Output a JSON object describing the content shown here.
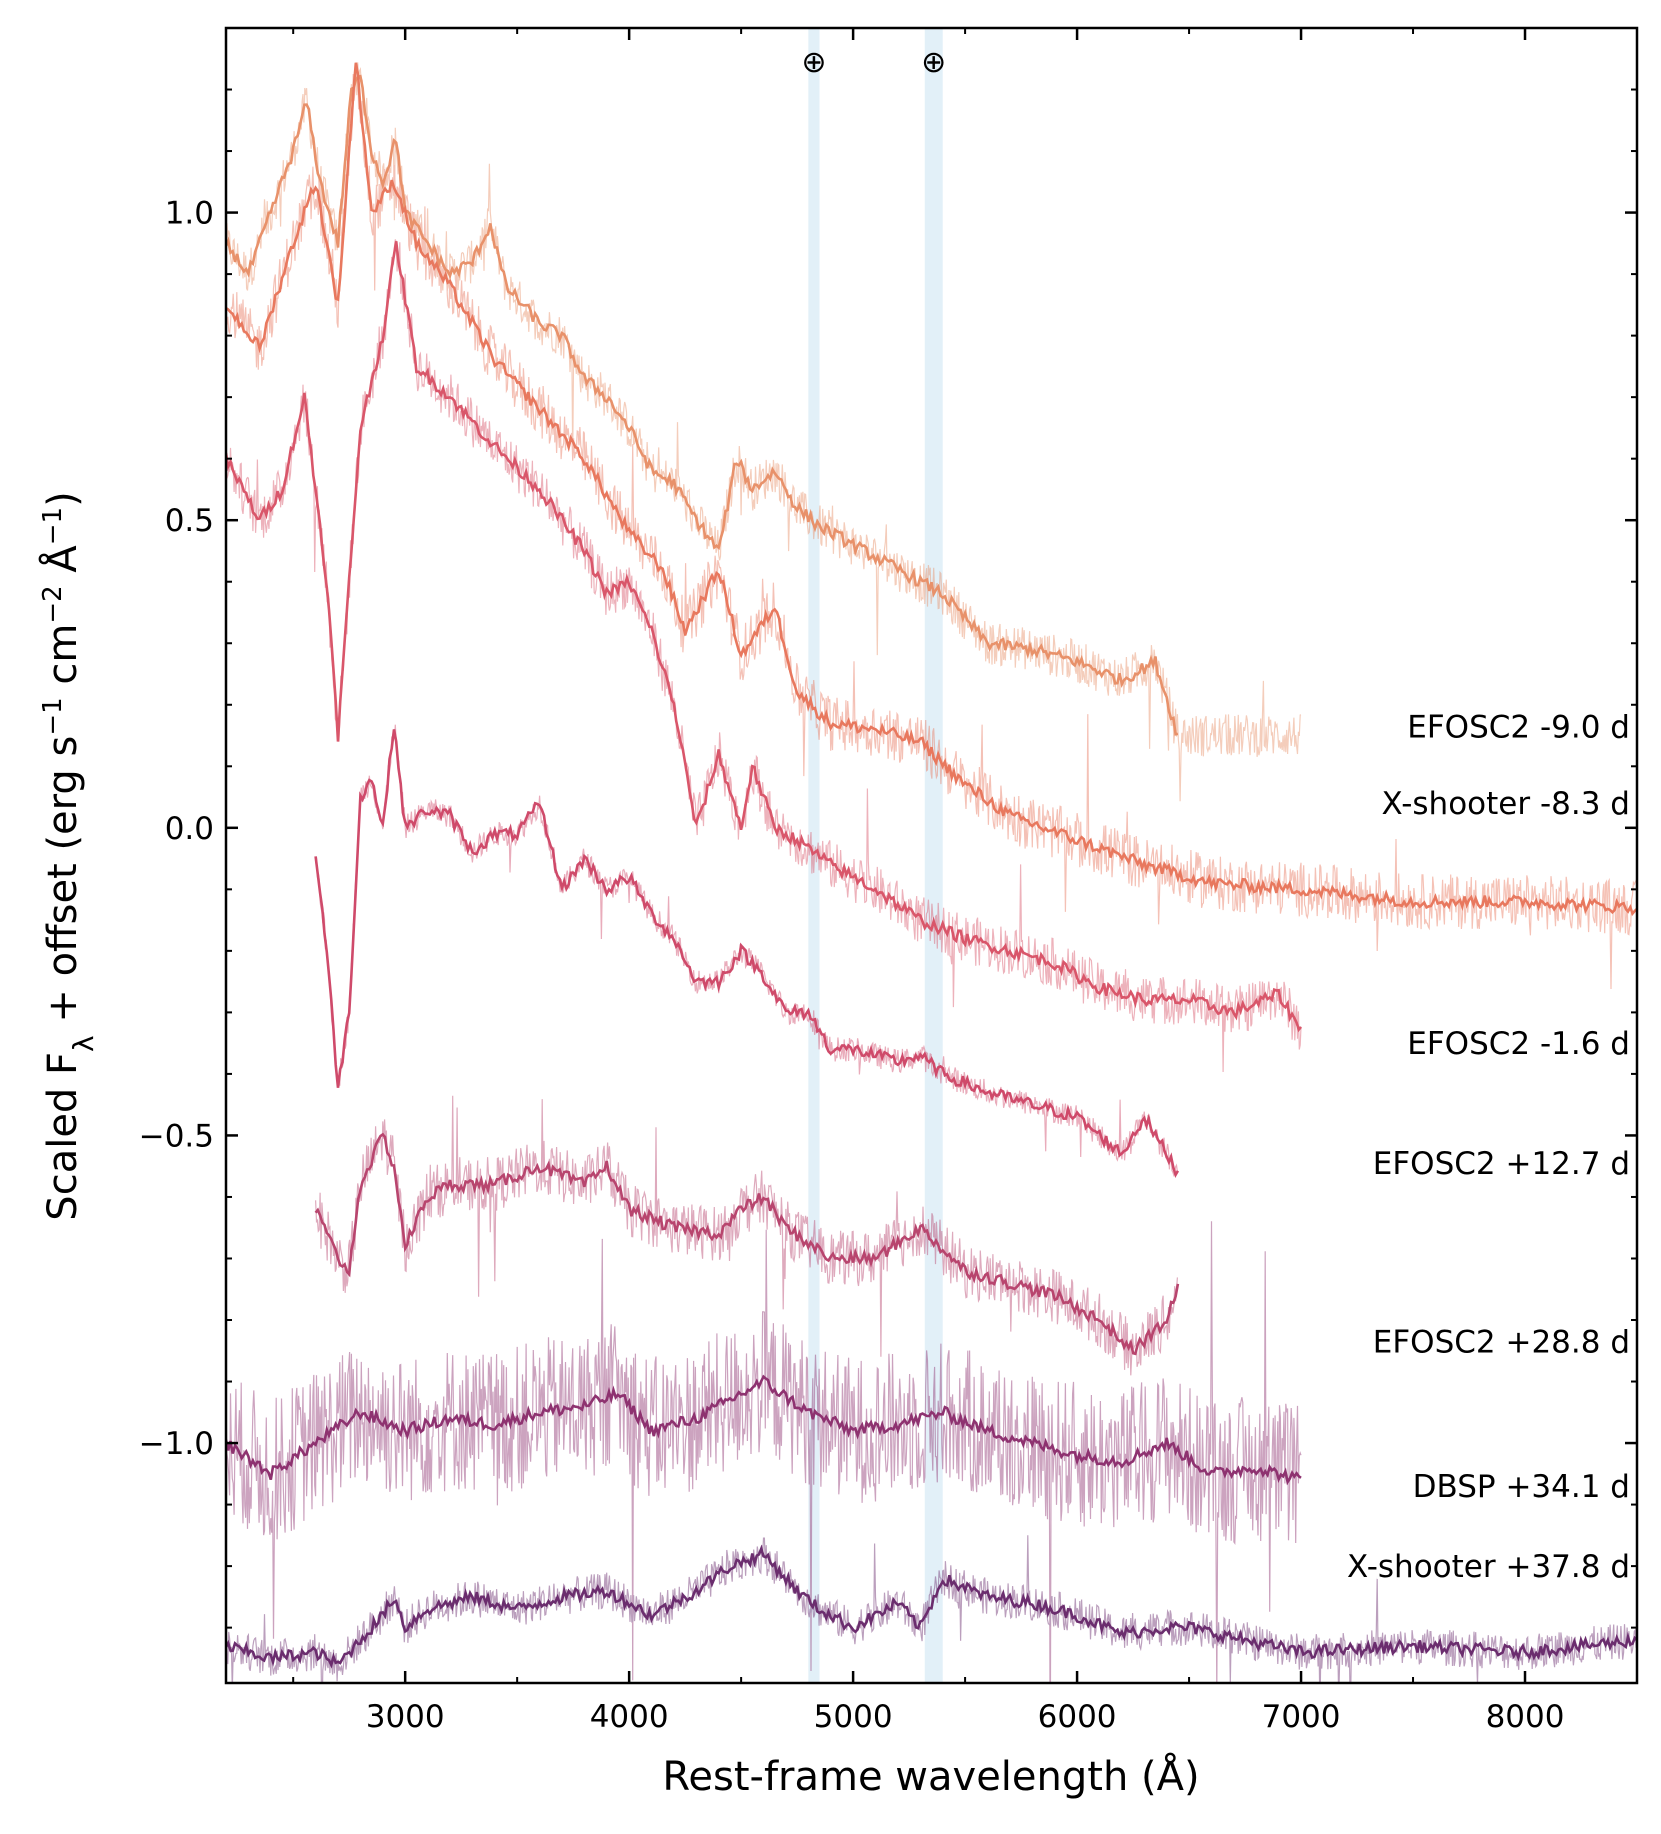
{
  "chart_data": {
    "type": "line",
    "title": "",
    "xlabel": "Rest-frame wavelength (Å)",
    "ylabel_parts": {
      "main": "Scaled F",
      "sub": "λ",
      "rest1": " + offset (erg s",
      "sup1": "−1",
      "rest2": " cm",
      "sup2": "−2",
      "rest3": " Å",
      "sup3": "−1",
      "rest4": ")"
    },
    "xlim": [
      2200,
      8500
    ],
    "ylim": [
      -1.39,
      1.3
    ],
    "xticks": [
      3000,
      4000,
      5000,
      6000,
      7000,
      8000
    ],
    "xtick_labels": [
      "3000",
      "4000",
      "5000",
      "6000",
      "7000",
      "8000"
    ],
    "yticks": [
      1.0,
      0.5,
      0.0,
      -0.5,
      -1.0
    ],
    "ytick_labels": [
      "1.0",
      "0.5",
      "0.0",
      "−0.5",
      "−1.0"
    ],
    "telluric_bands": [
      {
        "x0": 4800,
        "x1": 4850,
        "marker": "⊕"
      },
      {
        "x0": 5320,
        "x1": 5400,
        "marker": "⊕"
      }
    ],
    "series": [
      {
        "name": "EFOSC2 -9.0 d",
        "label": "EFOSC2 -9.0 d",
        "label_y": 0.165,
        "color": "#e8916a",
        "noise": 0.035,
        "raw_x_range": [
          2200,
          7000
        ],
        "smooth_x_range": [
          2200,
          6450
        ],
        "x": [
          2200,
          2300,
          2400,
          2500,
          2560,
          2620,
          2700,
          2760,
          2800,
          2850,
          2900,
          2960,
          3000,
          3100,
          3200,
          3300,
          3380,
          3450,
          3600,
          3700,
          3800,
          3900,
          4000,
          4100,
          4200,
          4300,
          4400,
          4480,
          4550,
          4650,
          4750,
          4850,
          5000,
          5200,
          5400,
          5600,
          5800,
          6000,
          6200,
          6350,
          6450
        ],
        "y": [
          0.95,
          0.9,
          1.0,
          1.1,
          1.18,
          1.05,
          0.95,
          1.2,
          1.22,
          1.1,
          1.05,
          1.12,
          1.0,
          0.95,
          0.9,
          0.92,
          0.98,
          0.88,
          0.82,
          0.8,
          0.73,
          0.7,
          0.65,
          0.58,
          0.56,
          0.5,
          0.45,
          0.6,
          0.55,
          0.58,
          0.52,
          0.49,
          0.46,
          0.42,
          0.38,
          0.3,
          0.29,
          0.27,
          0.24,
          0.27,
          0.15
        ]
      },
      {
        "name": "X-shooter -8.3 d",
        "label": "X-shooter -8.3 d",
        "label_y": 0.04,
        "color": "#e8785e",
        "noise": 0.045,
        "raw_x_range": [
          2200,
          8500
        ],
        "smooth_x_range": [
          2200,
          8500
        ],
        "x": [
          2200,
          2350,
          2500,
          2600,
          2700,
          2780,
          2850,
          2950,
          3050,
          3200,
          3400,
          3600,
          3800,
          4000,
          4150,
          4250,
          4400,
          4500,
          4650,
          4750,
          4900,
          5100,
          5300,
          5500,
          5700,
          6000,
          6300,
          6600,
          7000,
          7500,
          8000,
          8500
        ],
        "y": [
          0.85,
          0.78,
          0.95,
          1.05,
          0.85,
          1.25,
          1.0,
          1.05,
          0.95,
          0.88,
          0.76,
          0.68,
          0.6,
          0.48,
          0.42,
          0.32,
          0.42,
          0.28,
          0.36,
          0.22,
          0.17,
          0.16,
          0.14,
          0.07,
          0.02,
          -0.02,
          -0.06,
          -0.09,
          -0.1,
          -0.12,
          -0.12,
          -0.13
        ]
      },
      {
        "name": "EFOSC2 -1.6 d",
        "label": "EFOSC2 -1.6 d",
        "label_y": -0.35,
        "color": "#d9566a",
        "noise": 0.04,
        "raw_x_range": [
          2200,
          7000
        ],
        "smooth_x_range": [
          2200,
          7000
        ],
        "x": [
          2200,
          2350,
          2450,
          2550,
          2650,
          2700,
          2800,
          2900,
          2960,
          3050,
          3200,
          3400,
          3600,
          3800,
          3900,
          4000,
          4100,
          4200,
          4300,
          4400,
          4500,
          4550,
          4650,
          4750,
          4900,
          5100,
          5300,
          5500,
          5700,
          5900,
          6100,
          6300,
          6500,
          6700,
          6900,
          7000
        ],
        "y": [
          0.6,
          0.5,
          0.55,
          0.7,
          0.4,
          0.15,
          0.65,
          0.8,
          0.95,
          0.75,
          0.7,
          0.62,
          0.55,
          0.45,
          0.38,
          0.4,
          0.32,
          0.2,
          0.0,
          0.12,
          0.0,
          0.1,
          0.0,
          -0.02,
          -0.06,
          -0.1,
          -0.15,
          -0.18,
          -0.2,
          -0.22,
          -0.26,
          -0.28,
          -0.28,
          -0.3,
          -0.27,
          -0.33
        ]
      },
      {
        "name": "EFOSC2 +12.7 d",
        "label": "EFOSC2 +12.7 d",
        "label_y": -0.545,
        "color": "#cf4a6a",
        "noise": 0.02,
        "raw_x_range": [
          2600,
          6450
        ],
        "smooth_x_range": [
          2600,
          6450
        ],
        "x": [
          2600,
          2650,
          2700,
          2750,
          2800,
          2850,
          2900,
          2950,
          3000,
          3100,
          3200,
          3300,
          3400,
          3500,
          3600,
          3700,
          3800,
          3900,
          4000,
          4100,
          4200,
          4300,
          4400,
          4500,
          4600,
          4700,
          4800,
          4900,
          5000,
          5200,
          5300,
          5400,
          5600,
          5800,
          6000,
          6200,
          6300,
          6450
        ],
        "y": [
          -0.04,
          -0.2,
          -0.42,
          -0.3,
          0.05,
          0.08,
          0.0,
          0.17,
          0.0,
          0.03,
          0.02,
          -0.04,
          -0.01,
          -0.01,
          0.04,
          -0.1,
          -0.05,
          -0.1,
          -0.08,
          -0.14,
          -0.18,
          -0.25,
          -0.25,
          -0.2,
          -0.24,
          -0.3,
          -0.3,
          -0.36,
          -0.36,
          -0.38,
          -0.37,
          -0.4,
          -0.43,
          -0.45,
          -0.47,
          -0.53,
          -0.47,
          -0.56
        ]
      },
      {
        "name": "EFOSC2 +28.8 d",
        "label": "EFOSC2 +28.8 d",
        "label_y": -0.835,
        "color": "#b8456e",
        "noise": 0.045,
        "raw_x_range": [
          2600,
          6450
        ],
        "smooth_x_range": [
          2600,
          6450
        ],
        "x": [
          2600,
          2700,
          2750,
          2800,
          2900,
          2950,
          3000,
          3100,
          3200,
          3400,
          3600,
          3800,
          3900,
          4000,
          4200,
          4400,
          4500,
          4600,
          4700,
          4900,
          5100,
          5300,
          5500,
          5700,
          5900,
          6100,
          6250,
          6400,
          6450
        ],
        "y": [
          -0.62,
          -0.7,
          -0.72,
          -0.58,
          -0.5,
          -0.55,
          -0.68,
          -0.6,
          -0.58,
          -0.58,
          -0.55,
          -0.58,
          -0.55,
          -0.62,
          -0.65,
          -0.66,
          -0.62,
          -0.6,
          -0.65,
          -0.7,
          -0.7,
          -0.65,
          -0.72,
          -0.74,
          -0.76,
          -0.8,
          -0.85,
          -0.8,
          -0.75
        ]
      },
      {
        "name": "DBSP +34.1 d",
        "label": "DBSP +34.1 d",
        "label_y": -1.07,
        "color": "#8e3270",
        "noise": 0.12,
        "raw_x_range": [
          2200,
          7000
        ],
        "smooth_x_range": [
          2200,
          7000
        ],
        "x": [
          2200,
          2400,
          2600,
          2800,
          3000,
          3200,
          3400,
          3600,
          3800,
          3950,
          4100,
          4300,
          4500,
          4600,
          4800,
          5000,
          5200,
          5400,
          5600,
          5800,
          6000,
          6200,
          6400,
          6600,
          6800,
          7000
        ],
        "y": [
          -1.0,
          -1.05,
          -1.0,
          -0.95,
          -0.98,
          -0.96,
          -0.97,
          -0.95,
          -0.94,
          -0.92,
          -0.98,
          -0.96,
          -0.92,
          -0.9,
          -0.95,
          -0.98,
          -0.97,
          -0.95,
          -0.98,
          -1.0,
          -1.02,
          -1.03,
          -1.0,
          -1.05,
          -1.04,
          -1.06
        ]
      },
      {
        "name": "X-shooter +37.8 d",
        "label": "X-shooter +37.8 d",
        "label_y": -1.2,
        "color": "#6b2d6e",
        "noise": 0.03,
        "raw_x_range": [
          2200,
          8500
        ],
        "smooth_x_range": [
          2200,
          8500
        ],
        "x": [
          2200,
          2400,
          2600,
          2700,
          2800,
          2900,
          2950,
          3000,
          3100,
          3300,
          3500,
          3700,
          3900,
          4100,
          4300,
          4450,
          4600,
          4750,
          4850,
          5000,
          5200,
          5300,
          5400,
          5600,
          5800,
          6000,
          6200,
          6400,
          6500,
          7000,
          7500,
          8000,
          8500
        ],
        "y": [
          -1.33,
          -1.35,
          -1.34,
          -1.36,
          -1.32,
          -1.28,
          -1.25,
          -1.3,
          -1.27,
          -1.25,
          -1.27,
          -1.25,
          -1.24,
          -1.28,
          -1.24,
          -1.2,
          -1.18,
          -1.24,
          -1.27,
          -1.3,
          -1.26,
          -1.3,
          -1.22,
          -1.25,
          -1.26,
          -1.28,
          -1.31,
          -1.3,
          -1.3,
          -1.34,
          -1.33,
          -1.34,
          -1.32
        ]
      }
    ]
  }
}
